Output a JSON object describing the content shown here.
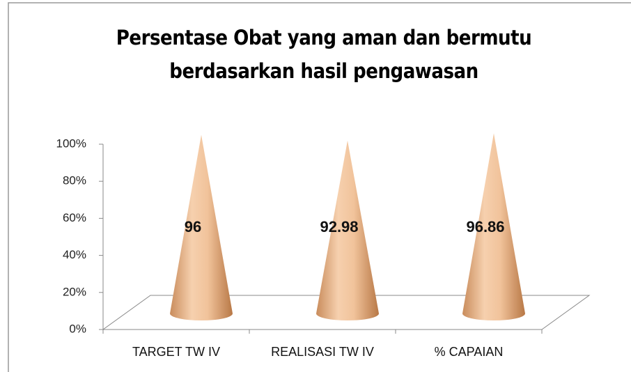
{
  "chart_data": {
    "type": "cone",
    "title": "Persentase Obat yang aman dan bermutu berdasarkan hasil pengawasan",
    "categories": [
      "TARGET TW IV",
      "REALISASI TW IV",
      "% CAPAIAN"
    ],
    "values": [
      96,
      92.98,
      96.86
    ],
    "color": "#e8b48a",
    "ylim": [
      0,
      100
    ],
    "yticks": [
      {
        "value": 0,
        "label": "0%"
      },
      {
        "value": 20,
        "label": "20%"
      },
      {
        "value": 40,
        "label": "40%"
      },
      {
        "value": 60,
        "label": "60%"
      },
      {
        "value": 80,
        "label": "80%"
      },
      {
        "value": 100,
        "label": "100%"
      }
    ]
  }
}
